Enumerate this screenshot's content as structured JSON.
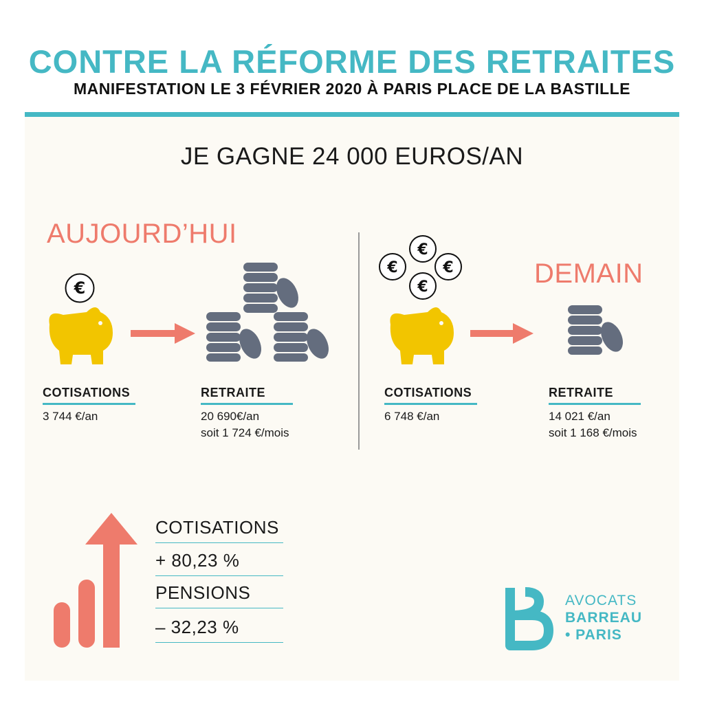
{
  "header": {
    "title": "CONTRE LA RÉFORME DES RETRAITES",
    "subtitle": "MANIFESTATION LE 3 FÉVRIER 2020 À PARIS PLACE DE LA BASTILLE"
  },
  "income": "JE GAGNE 24 000 EUROS/AN",
  "today": {
    "title": "AUJOURD’HUI",
    "cotisations_label": "COTISATIONS",
    "cotisations_value": "3 744 €/an",
    "retraite_label": "RETRAITE",
    "retraite_value_year": "20 690€/an",
    "retraite_value_month": "soit 1 724 €/mois"
  },
  "tomorrow": {
    "title": "DEMAIN",
    "cotisations_label": "COTISATIONS",
    "cotisations_value": "6 748 €/an",
    "retraite_label": "RETRAITE",
    "retraite_value_year": "14 021 €/an",
    "retraite_value_month": "soit 1 168 €/mois"
  },
  "summary": {
    "cotisations_label": "COTISATIONS",
    "cotisations_change": "+ 80,23 %",
    "pensions_label": "PENSIONS",
    "pensions_change": "– 32,23 %"
  },
  "brand": {
    "line1": "AVOCATS",
    "line2": "BARREAU",
    "line3": "• PARIS"
  },
  "icons": {
    "euro": "€",
    "piggy": "piggy-bank-icon",
    "coins": "coin-stack-icon",
    "arrow": "arrow-right-icon",
    "growth": "growth-chart-icon",
    "logo": "barreau-logo-icon"
  },
  "colors": {
    "teal": "#45b8c4",
    "coral": "#ee7b6c",
    "gold": "#f2c500",
    "coin": "#646d7e",
    "panel": "#fcfaf4"
  }
}
